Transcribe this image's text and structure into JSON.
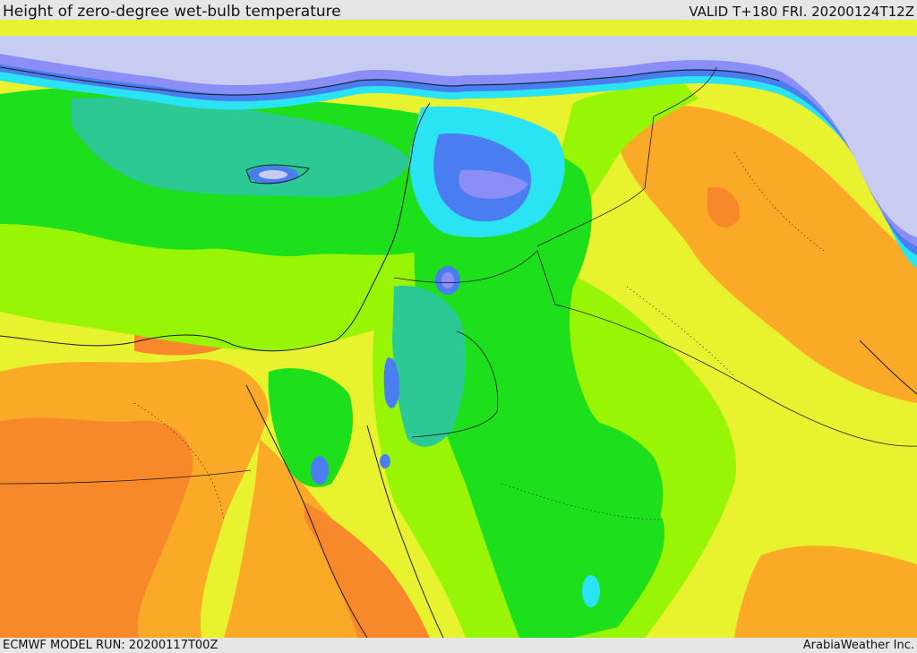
{
  "header": {
    "title": "Height of zero-degree wet-bulb temperature",
    "valid": "VALID T+180 FRI. 20200124T12Z"
  },
  "footer": {
    "model_run": "ECMWF MODEL RUN: 20200117T00Z",
    "credit": "ArabiaWeather Inc."
  },
  "colors": {
    "orange_dark": "#f7892a",
    "orange": "#fbaa28",
    "yellow": "#e8f22e",
    "lime": "#98f505",
    "green": "#1ddf1c",
    "teal": "#2cc995",
    "cyan": "#2ae3f3",
    "blue": "#4a7ef0",
    "violet": "#8a8ef6",
    "pale_lavender": "#c8ccf0",
    "boundary": "#1a1a1a"
  }
}
